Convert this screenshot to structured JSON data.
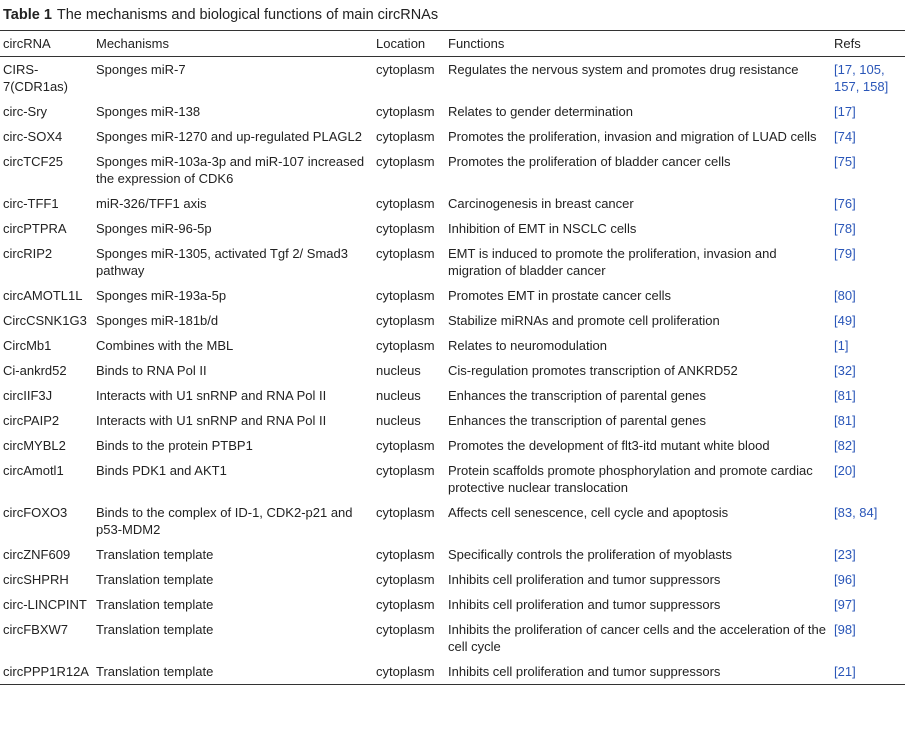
{
  "caption": {
    "label": "Table 1",
    "title": "The mechanisms and biological functions of main circRNAs"
  },
  "table": {
    "header": [
      "circRNA",
      "Mechanisms",
      "Location",
      "Functions",
      "Refs"
    ],
    "rows": [
      [
        "CIRS-7(CDR1as)",
        "Sponges miR-7",
        "cytoplasm",
        "Regulates the nervous system and promotes drug resistance",
        "[17, 105, 157, 158]"
      ],
      [
        "circ-Sry",
        "Sponges miR-138",
        "cytoplasm",
        "Relates to gender determination",
        "[17]"
      ],
      [
        "circ-SOX4",
        "Sponges miR-1270 and up-regulated PLAGL2",
        "cytoplasm",
        "Promotes the proliferation, invasion and migration of LUAD cells",
        "[74]"
      ],
      [
        "circTCF25",
        "Sponges miR-103a-3p and miR-107 increased the expression of CDK6",
        "cytoplasm",
        "Promotes the proliferation of bladder cancer cells",
        "[75]"
      ],
      [
        "circ-TFF1",
        "miR-326/TFF1 axis",
        "cytoplasm",
        "Carcinogenesis in breast cancer",
        "[76]"
      ],
      [
        "circPTPRA",
        "Sponges miR-96-5p",
        "cytoplasm",
        "Inhibition of EMT in NSCLC cells",
        "[78]"
      ],
      [
        "circRIP2",
        "Sponges miR-1305, activated Tgf 2/ Smad3 pathway",
        "cytoplasm",
        "EMT is induced to promote the proliferation, invasion and migration of bladder cancer",
        "[79]"
      ],
      [
        "circAMOTL1L",
        "Sponges miR-193a-5p",
        "cytoplasm",
        "Promotes EMT in prostate cancer cells",
        "[80]"
      ],
      [
        "CircCSNK1G3",
        "Sponges miR-181b/d",
        "cytoplasm",
        "Stabilize miRNAs and promote cell proliferation",
        "[49]"
      ],
      [
        "CircMb1",
        "Combines with the MBL",
        "cytoplasm",
        "Relates to neuromodulation",
        "[1]"
      ],
      [
        "Ci-ankrd52",
        "Binds to RNA Pol II",
        "nucleus",
        "Cis-regulation promotes transcription of ANKRD52",
        "[32]"
      ],
      [
        "circIIF3J",
        "Interacts with U1 snRNP and RNA Pol II",
        "nucleus",
        "Enhances the transcription of parental genes",
        "[81]"
      ],
      [
        "circPAIP2",
        "Interacts with U1 snRNP and RNA Pol II",
        "nucleus",
        "Enhances the transcription of parental genes",
        "[81]"
      ],
      [
        "circMYBL2",
        "Binds to the protein PTBP1",
        "cytoplasm",
        "Promotes the development of flt3-itd mutant white blood",
        "[82]"
      ],
      [
        "circAmotl1",
        "Binds PDK1 and AKT1",
        "cytoplasm",
        "Protein scaffolds promote phosphorylation and promote cardiac protective nuclear translocation",
        "[20]"
      ],
      [
        "circFOXO3",
        "Binds to the complex of ID-1, CDK2-p21 and p53-MDM2",
        "cytoplasm",
        "Affects cell senescence, cell cycle and apoptosis",
        "[83, 84]"
      ],
      [
        "circZNF609",
        "Translation template",
        "cytoplasm",
        "Specifically controls the proliferation of myoblasts",
        "[23]"
      ],
      [
        "circSHPRH",
        "Translation template",
        "cytoplasm",
        "Inhibits cell proliferation and tumor suppressors",
        "[96]"
      ],
      [
        "circ-LINCPINT",
        "Translation template",
        "cytoplasm",
        "Inhibits cell proliferation and tumor suppressors",
        "[97]"
      ],
      [
        "circFBXW7",
        "Translation template",
        "cytoplasm",
        "Inhibits the proliferation of cancer cells and the acceleration of the cell cycle",
        "[98]"
      ],
      [
        "circPPP1R12A",
        "Translation template",
        "cytoplasm",
        "Inhibits cell proliferation and tumor suppressors",
        "[21]"
      ]
    ]
  }
}
